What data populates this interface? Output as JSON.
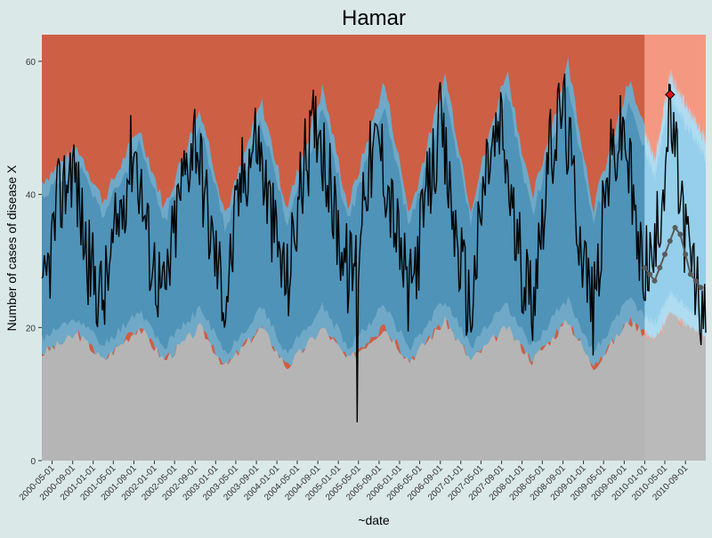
{
  "colors": {
    "background": "#dbe8e8",
    "upper_region": "#cd5f45",
    "upper_region_forecast": "#f59078",
    "normal_band_outer": "#6fa9c7",
    "normal_band_inner": "#4f93b8",
    "normal_band_outer_forecast": "#a9d9f0",
    "normal_band_inner_forecast": "#8ccbea",
    "lower_region": "#b5b5b5",
    "observed_line": "#000000",
    "expected_points": "#5a5a5a",
    "alert_marker": "#e0101a"
  },
  "chart_data": {
    "type": "area",
    "title": "Hamar",
    "xlabel": "~date",
    "ylabel": "Number of cases of disease X",
    "ylim": [
      0,
      64
    ],
    "xlim": [
      "2000-03-01",
      "2010-12-31"
    ],
    "forecast_start": "2010-01-01",
    "y_ticks": [
      0,
      20,
      40,
      60
    ],
    "x_ticks": [
      "2000-05-01",
      "2000-09-01",
      "2001-01-01",
      "2001-05-01",
      "2001-09-01",
      "2002-01-01",
      "2002-05-01",
      "2002-09-01",
      "2003-01-01",
      "2003-05-01",
      "2003-09-01",
      "2004-01-01",
      "2004-05-01",
      "2004-09-01",
      "2005-01-01",
      "2005-05-01",
      "2005-09-01",
      "2006-01-01",
      "2006-05-01",
      "2006-09-01",
      "2007-01-01",
      "2007-05-01",
      "2007-09-01",
      "2008-01-01",
      "2008-05-01",
      "2008-09-01",
      "2009-01-01",
      "2009-05-01",
      "2009-09-01",
      "2010-01-01",
      "2010-05-01",
      "2010-09-01"
    ],
    "grid": false,
    "series": [
      {
        "role": "observed",
        "x": [
          "2000-03-01",
          "2000-06-01",
          "2000-09-01",
          "2000-12-01",
          "2001-03-01",
          "2001-06-01",
          "2001-09-01",
          "2001-12-01",
          "2002-03-01",
          "2002-06-01",
          "2002-09-01",
          "2002-12-01",
          "2003-03-01",
          "2003-06-01",
          "2003-09-01",
          "2003-12-01",
          "2004-03-01",
          "2004-06-01",
          "2004-09-01",
          "2004-12-01",
          "2005-03-01",
          "2005-04-20",
          "2005-04-23",
          "2005-04-26",
          "2005-06-01",
          "2005-09-01",
          "2005-12-01",
          "2006-03-01",
          "2006-06-01",
          "2006-09-01",
          "2006-12-01",
          "2007-03-01",
          "2007-06-01",
          "2007-09-01",
          "2007-12-01",
          "2008-03-01",
          "2008-06-01",
          "2008-09-01",
          "2008-12-01",
          "2009-03-01",
          "2009-06-01",
          "2009-09-01",
          "2009-12-01",
          "2010-03-01",
          "2010-06-01",
          "2010-09-01",
          "2010-12-31"
        ],
        "values": [
          22,
          38,
          45,
          30,
          24,
          36,
          48,
          32,
          24,
          40,
          50,
          34,
          24,
          42,
          49,
          36,
          26,
          43,
          52,
          38,
          28,
          30,
          0,
          30,
          42,
          48,
          36,
          24,
          38,
          50,
          34,
          22,
          44,
          50,
          32,
          24,
          44,
          54,
          36,
          22,
          44,
          50,
          30,
          30,
          52,
          34,
          19
        ]
      },
      {
        "role": "expected",
        "x": [
          "2010-01-01",
          "2010-02-01",
          "2010-03-01",
          "2010-04-01",
          "2010-05-01",
          "2010-06-01",
          "2010-07-01",
          "2010-08-01",
          "2010-09-01",
          "2010-10-01",
          "2010-11-01",
          "2010-12-01"
        ],
        "values": [
          29,
          28,
          27,
          29,
          31,
          33,
          35,
          34,
          31,
          28,
          27,
          26
        ]
      },
      {
        "role": "alert",
        "x": [
          "2010-06-01"
        ],
        "values": [
          55
        ]
      },
      {
        "role": "threshold-upper",
        "x": [
          "2000-03-01",
          "2000-10-01",
          "2001-03-01",
          "2001-10-01",
          "2002-03-01",
          "2002-10-01",
          "2003-03-01",
          "2003-10-01",
          "2004-03-01",
          "2004-10-01",
          "2005-03-01",
          "2005-10-01",
          "2006-03-01",
          "2006-10-01",
          "2007-03-01",
          "2007-10-01",
          "2008-03-01",
          "2008-10-01",
          "2009-03-01",
          "2009-10-01",
          "2010-03-01",
          "2010-06-01",
          "2010-12-31"
        ],
        "values": [
          42,
          47,
          39,
          50,
          38,
          53,
          37,
          54,
          38,
          56,
          38,
          57,
          37,
          58,
          38,
          59,
          39,
          60,
          38,
          57,
          45,
          58,
          48
        ]
      },
      {
        "role": "threshold-lower",
        "x": [
          "2000-03-01",
          "2000-10-01",
          "2001-03-01",
          "2001-10-01",
          "2002-03-01",
          "2002-10-01",
          "2003-03-01",
          "2003-10-01",
          "2004-03-01",
          "2004-10-01",
          "2005-03-01",
          "2005-10-01",
          "2006-03-01",
          "2006-10-01",
          "2007-03-01",
          "2007-10-01",
          "2008-03-01",
          "2008-10-01",
          "2009-03-01",
          "2009-10-01",
          "2010-03-01",
          "2010-06-01",
          "2010-12-31"
        ],
        "values": [
          16,
          19,
          15,
          20,
          15,
          20,
          14,
          20,
          14,
          20,
          15,
          20,
          15,
          21,
          15,
          20,
          15,
          21,
          14,
          21,
          18,
          22,
          18
        ]
      }
    ]
  }
}
